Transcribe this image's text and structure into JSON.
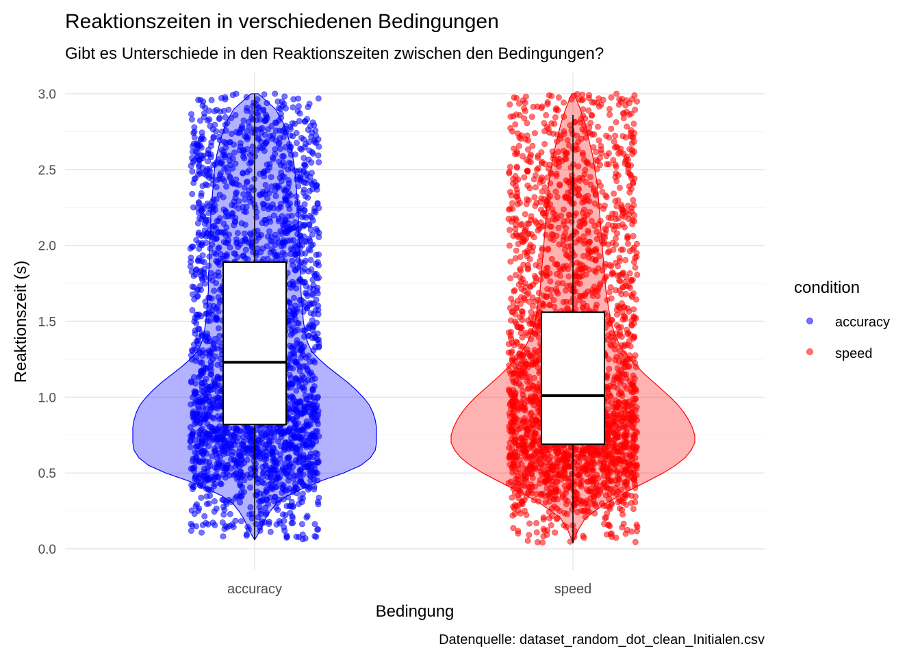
{
  "chart_data": {
    "type": "violin",
    "title": "Reaktionszeiten in verschiedenen Bedingungen",
    "subtitle": "Gibt es Unterschiede in den Reaktionszeiten zwischen den Bedingungen?",
    "caption": "Datenquelle: dataset_random_dot_clean_Initialen.csv",
    "xlabel": "Bedingung",
    "ylabel": "Reaktionszeit (s)",
    "ylim": [
      0,
      3.0
    ],
    "yticks": [
      "0.0",
      "0.5",
      "1.0",
      "1.5",
      "2.0",
      "2.5",
      "3.0"
    ],
    "yticks_values": [
      0,
      0.5,
      1.0,
      1.5,
      2.0,
      2.5,
      3.0
    ],
    "categories": [
      "accuracy",
      "speed"
    ],
    "grid": true,
    "legend": {
      "title": "condition",
      "position": "right",
      "entries": [
        "accuracy",
        "speed"
      ]
    },
    "colors": {
      "accuracy": "#0000ff",
      "speed": "#ff0000"
    },
    "series": [
      {
        "name": "accuracy",
        "box": {
          "q1": 0.82,
          "median": 1.23,
          "q3": 1.89,
          "whisker_low": 0.06,
          "whisker_high": 3.0
        },
        "min": 0.06,
        "max": 3.0,
        "density": [
          [
            0.06,
            0.0
          ],
          [
            0.1,
            0.03
          ],
          [
            0.15,
            0.06
          ],
          [
            0.2,
            0.09
          ],
          [
            0.25,
            0.13
          ],
          [
            0.3,
            0.18
          ],
          [
            0.35,
            0.27
          ],
          [
            0.4,
            0.4
          ],
          [
            0.45,
            0.55
          ],
          [
            0.5,
            0.73
          ],
          [
            0.55,
            0.87
          ],
          [
            0.6,
            0.95
          ],
          [
            0.65,
            0.99
          ],
          [
            0.7,
            1.0
          ],
          [
            0.75,
            1.0
          ],
          [
            0.8,
            1.0
          ],
          [
            0.85,
            0.99
          ],
          [
            0.9,
            0.97
          ],
          [
            0.95,
            0.94
          ],
          [
            1.0,
            0.89
          ],
          [
            1.05,
            0.83
          ],
          [
            1.1,
            0.76
          ],
          [
            1.15,
            0.68
          ],
          [
            1.2,
            0.6
          ],
          [
            1.25,
            0.53
          ],
          [
            1.3,
            0.47
          ],
          [
            1.35,
            0.44
          ],
          [
            1.4,
            0.42
          ],
          [
            1.45,
            0.41
          ],
          [
            1.5,
            0.4
          ],
          [
            1.6,
            0.39
          ],
          [
            1.7,
            0.38
          ],
          [
            1.8,
            0.38
          ],
          [
            1.9,
            0.37
          ],
          [
            2.0,
            0.37
          ],
          [
            2.1,
            0.36
          ],
          [
            2.2,
            0.36
          ],
          [
            2.3,
            0.35
          ],
          [
            2.4,
            0.34
          ],
          [
            2.5,
            0.33
          ],
          [
            2.6,
            0.31
          ],
          [
            2.7,
            0.28
          ],
          [
            2.8,
            0.24
          ],
          [
            2.9,
            0.17
          ],
          [
            2.95,
            0.1
          ],
          [
            3.0,
            0.03
          ]
        ]
      },
      {
        "name": "speed",
        "box": {
          "q1": 0.69,
          "median": 1.01,
          "q3": 1.56,
          "whisker_low": 0.04,
          "whisker_high": 2.86
        },
        "min": 0.04,
        "max": 3.0,
        "density": [
          [
            0.04,
            0.0
          ],
          [
            0.08,
            0.02
          ],
          [
            0.12,
            0.04
          ],
          [
            0.16,
            0.07
          ],
          [
            0.2,
            0.1
          ],
          [
            0.25,
            0.18
          ],
          [
            0.3,
            0.27
          ],
          [
            0.35,
            0.38
          ],
          [
            0.4,
            0.5
          ],
          [
            0.45,
            0.62
          ],
          [
            0.5,
            0.74
          ],
          [
            0.55,
            0.84
          ],
          [
            0.6,
            0.92
          ],
          [
            0.65,
            0.97
          ],
          [
            0.7,
            1.0
          ],
          [
            0.75,
            1.0
          ],
          [
            0.8,
            0.98
          ],
          [
            0.85,
            0.95
          ],
          [
            0.9,
            0.91
          ],
          [
            0.95,
            0.86
          ],
          [
            1.0,
            0.8
          ],
          [
            1.05,
            0.73
          ],
          [
            1.1,
            0.66
          ],
          [
            1.15,
            0.59
          ],
          [
            1.2,
            0.53
          ],
          [
            1.25,
            0.47
          ],
          [
            1.3,
            0.42
          ],
          [
            1.35,
            0.38
          ],
          [
            1.4,
            0.35
          ],
          [
            1.5,
            0.31
          ],
          [
            1.6,
            0.29
          ],
          [
            1.7,
            0.27
          ],
          [
            1.8,
            0.26
          ],
          [
            1.9,
            0.25
          ],
          [
            2.0,
            0.24
          ],
          [
            2.1,
            0.23
          ],
          [
            2.2,
            0.22
          ],
          [
            2.3,
            0.21
          ],
          [
            2.4,
            0.2
          ],
          [
            2.5,
            0.18
          ],
          [
            2.6,
            0.16
          ],
          [
            2.7,
            0.13
          ],
          [
            2.8,
            0.1
          ],
          [
            2.9,
            0.06
          ],
          [
            3.0,
            0.01
          ]
        ]
      }
    ]
  }
}
